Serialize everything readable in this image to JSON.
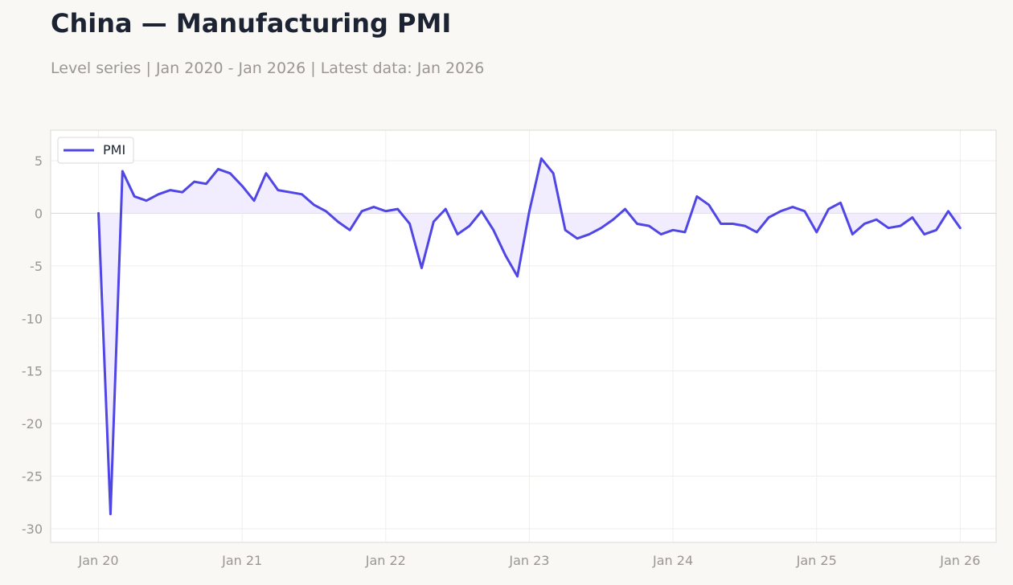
{
  "header": {
    "title": "China — Manufacturing PMI",
    "subtitle": "Level series | Jan 2020 - Jan 2026 | Latest data: Jan 2026"
  },
  "colors": {
    "line": "#4f46e5",
    "fill": "#ede9fe",
    "grid": "#efeeeb",
    "frame": "#dcdad5",
    "zero_line": "#d8d6d1"
  },
  "chart_data": {
    "type": "line",
    "title": "China — Manufacturing PMI",
    "subtitle": "Level series | Jan 2020 - Jan 2026 | Latest data: Jan 2026",
    "xlabel": "",
    "ylabel": "",
    "xlim": [
      "2019-09",
      "2026-04"
    ],
    "ylim": [
      -31.3,
      7.9
    ],
    "grid": true,
    "fill_to_zero": true,
    "legend": {
      "position": "top-left",
      "entries": [
        "PMI"
      ]
    },
    "x_ticks": [
      {
        "date": "2020-01",
        "label": "Jan 20"
      },
      {
        "date": "2021-01",
        "label": "Jan 21"
      },
      {
        "date": "2022-01",
        "label": "Jan 22"
      },
      {
        "date": "2023-01",
        "label": "Jan 23"
      },
      {
        "date": "2024-01",
        "label": "Jan 24"
      },
      {
        "date": "2025-01",
        "label": "Jan 25"
      },
      {
        "date": "2026-01",
        "label": "Jan 26"
      }
    ],
    "y_ticks": [
      {
        "value": 5,
        "label": "5"
      },
      {
        "value": 0,
        "label": "0"
      },
      {
        "value": -5,
        "label": "-5"
      },
      {
        "value": -10,
        "label": "-10"
      },
      {
        "value": -15,
        "label": "-15"
      },
      {
        "value": -20,
        "label": "-20"
      },
      {
        "value": -25,
        "label": "-25"
      },
      {
        "value": -30,
        "label": "-30"
      }
    ],
    "series": [
      {
        "name": "PMI",
        "x": [
          "2020-01",
          "2020-02",
          "2020-03",
          "2020-04",
          "2020-05",
          "2020-06",
          "2020-07",
          "2020-08",
          "2020-09",
          "2020-10",
          "2020-11",
          "2020-12",
          "2021-01",
          "2021-02",
          "2021-03",
          "2021-04",
          "2021-05",
          "2021-06",
          "2021-07",
          "2021-08",
          "2021-09",
          "2021-10",
          "2021-11",
          "2021-12",
          "2022-01",
          "2022-02",
          "2022-03",
          "2022-04",
          "2022-05",
          "2022-06",
          "2022-07",
          "2022-08",
          "2022-09",
          "2022-10",
          "2022-11",
          "2022-12",
          "2023-01",
          "2023-02",
          "2023-03",
          "2023-04",
          "2023-05",
          "2023-06",
          "2023-07",
          "2023-08",
          "2023-09",
          "2023-10",
          "2023-11",
          "2023-12",
          "2024-01",
          "2024-02",
          "2024-03",
          "2024-04",
          "2024-05",
          "2024-06",
          "2024-07",
          "2024-08",
          "2024-09",
          "2024-10",
          "2024-11",
          "2024-12",
          "2025-01",
          "2025-02",
          "2025-03",
          "2025-04",
          "2025-05",
          "2025-06",
          "2025-07",
          "2025-08",
          "2025-09",
          "2025-10",
          "2025-11",
          "2025-12",
          "2026-01"
        ],
        "y": [
          0.0,
          -28.6,
          4.0,
          1.6,
          1.2,
          1.8,
          2.2,
          2.0,
          3.0,
          2.8,
          4.2,
          3.8,
          2.6,
          1.2,
          3.8,
          2.2,
          2.0,
          1.8,
          0.8,
          0.2,
          -0.8,
          -1.6,
          0.2,
          0.6,
          0.2,
          0.4,
          -1.0,
          -5.2,
          -0.8,
          0.4,
          -2.0,
          -1.2,
          0.2,
          -1.6,
          -4.0,
          -6.0,
          0.2,
          5.2,
          3.8,
          -1.6,
          -2.4,
          -2.0,
          -1.4,
          -0.6,
          0.4,
          -1.0,
          -1.2,
          -2.0,
          -1.6,
          -1.8,
          1.6,
          0.8,
          -1.0,
          -1.0,
          -1.2,
          -1.8,
          -0.4,
          0.2,
          0.6,
          0.2,
          -1.8,
          0.4,
          1.0,
          -2.0,
          -1.0,
          -0.6,
          -1.4,
          -1.2,
          -0.4,
          -2.0,
          -1.6,
          0.2,
          -1.4
        ]
      }
    ]
  }
}
